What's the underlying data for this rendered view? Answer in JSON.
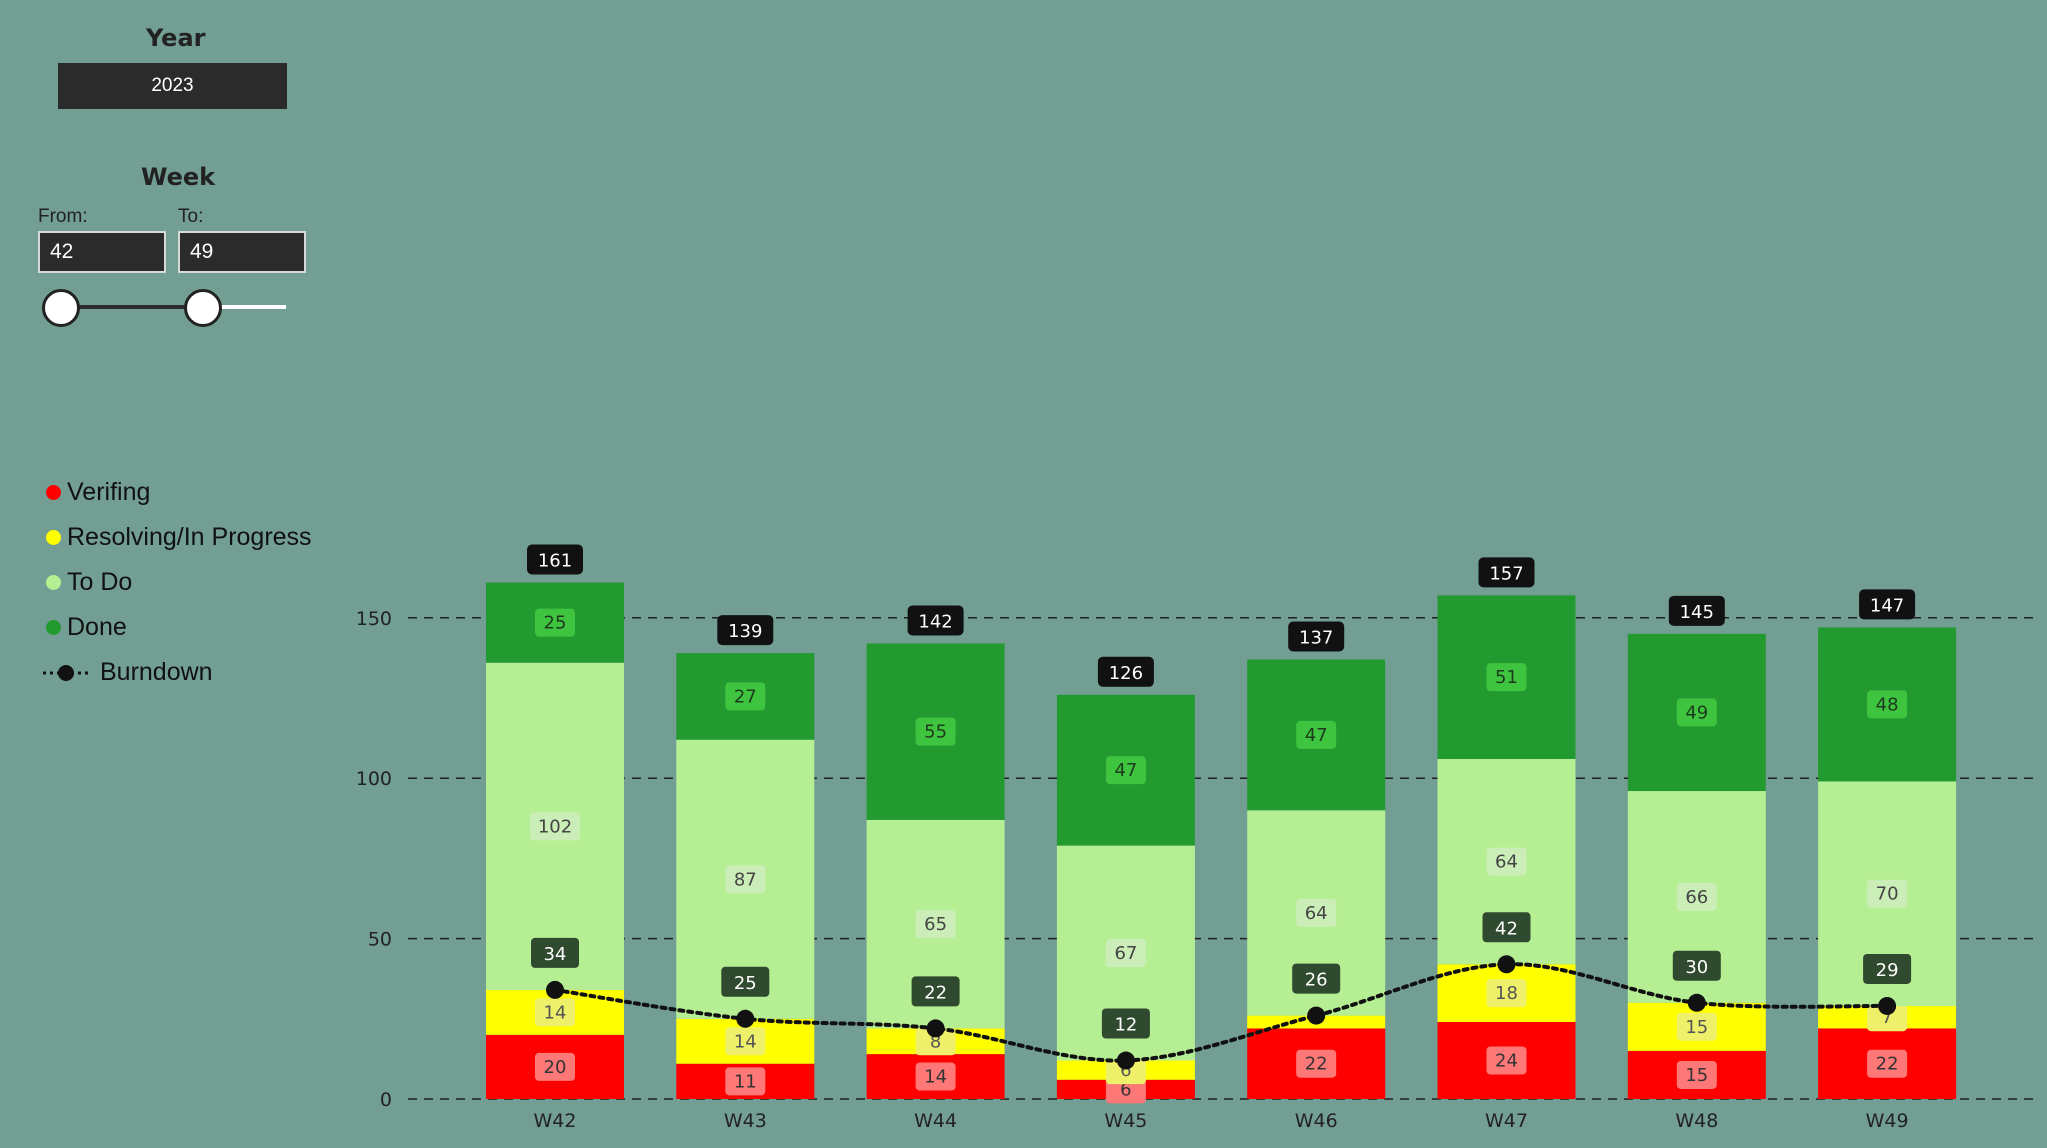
{
  "slicers": {
    "year": {
      "title": "Year",
      "value": "2023"
    },
    "week": {
      "title": "Week",
      "from_label": "From:",
      "to_label": "To:",
      "from_value": "42",
      "to_value": "49"
    }
  },
  "legend": {
    "items": [
      {
        "label": "Verifing",
        "color": "#ff0000"
      },
      {
        "label": "Resolving/In Progress",
        "color": "#ffff00"
      },
      {
        "label": "To Do",
        "color": "#b5ee93"
      },
      {
        "label": "Done",
        "color": "#229a30"
      },
      {
        "label": "Burndown",
        "color": "#111111"
      }
    ]
  },
  "chart_data": {
    "type": "bar",
    "stacked": true,
    "categories": [
      "W42",
      "W43",
      "W44",
      "W45",
      "W46",
      "W47",
      "W48",
      "W49"
    ],
    "ylim": [
      0,
      170
    ],
    "yticks": [
      0,
      50,
      100,
      150
    ],
    "grid": true,
    "legend_position": "left",
    "series": [
      {
        "name": "Verifing",
        "color": "#ff0000",
        "label_bg": "#ff7878",
        "label_color": "#333333",
        "values": [
          20,
          11,
          14,
          6,
          22,
          24,
          15,
          22
        ]
      },
      {
        "name": "Resolving/In Progress",
        "color": "#ffff00",
        "label_bg": "#eef06a",
        "label_color": "#555555",
        "values": [
          14,
          14,
          8,
          6,
          4,
          18,
          15,
          7
        ]
      },
      {
        "name": "To Do",
        "color": "#b5ee93",
        "label_bg": "#cbeeb8",
        "label_color": "#444444",
        "values": [
          102,
          87,
          65,
          67,
          64,
          64,
          66,
          70
        ]
      },
      {
        "name": "Done",
        "color": "#229a30",
        "label_bg": "#3ec43f",
        "label_color": "#1d3a1d",
        "values": [
          25,
          27,
          55,
          47,
          47,
          51,
          49,
          48
        ]
      }
    ],
    "hidden_labels": [
      [
        4,
        1
      ]
    ],
    "totals": [
      161,
      139,
      142,
      126,
      137,
      157,
      145,
      147
    ],
    "burndown": {
      "name": "Burndown",
      "values": [
        34,
        25,
        22,
        12,
        26,
        42,
        30,
        29
      ]
    }
  }
}
